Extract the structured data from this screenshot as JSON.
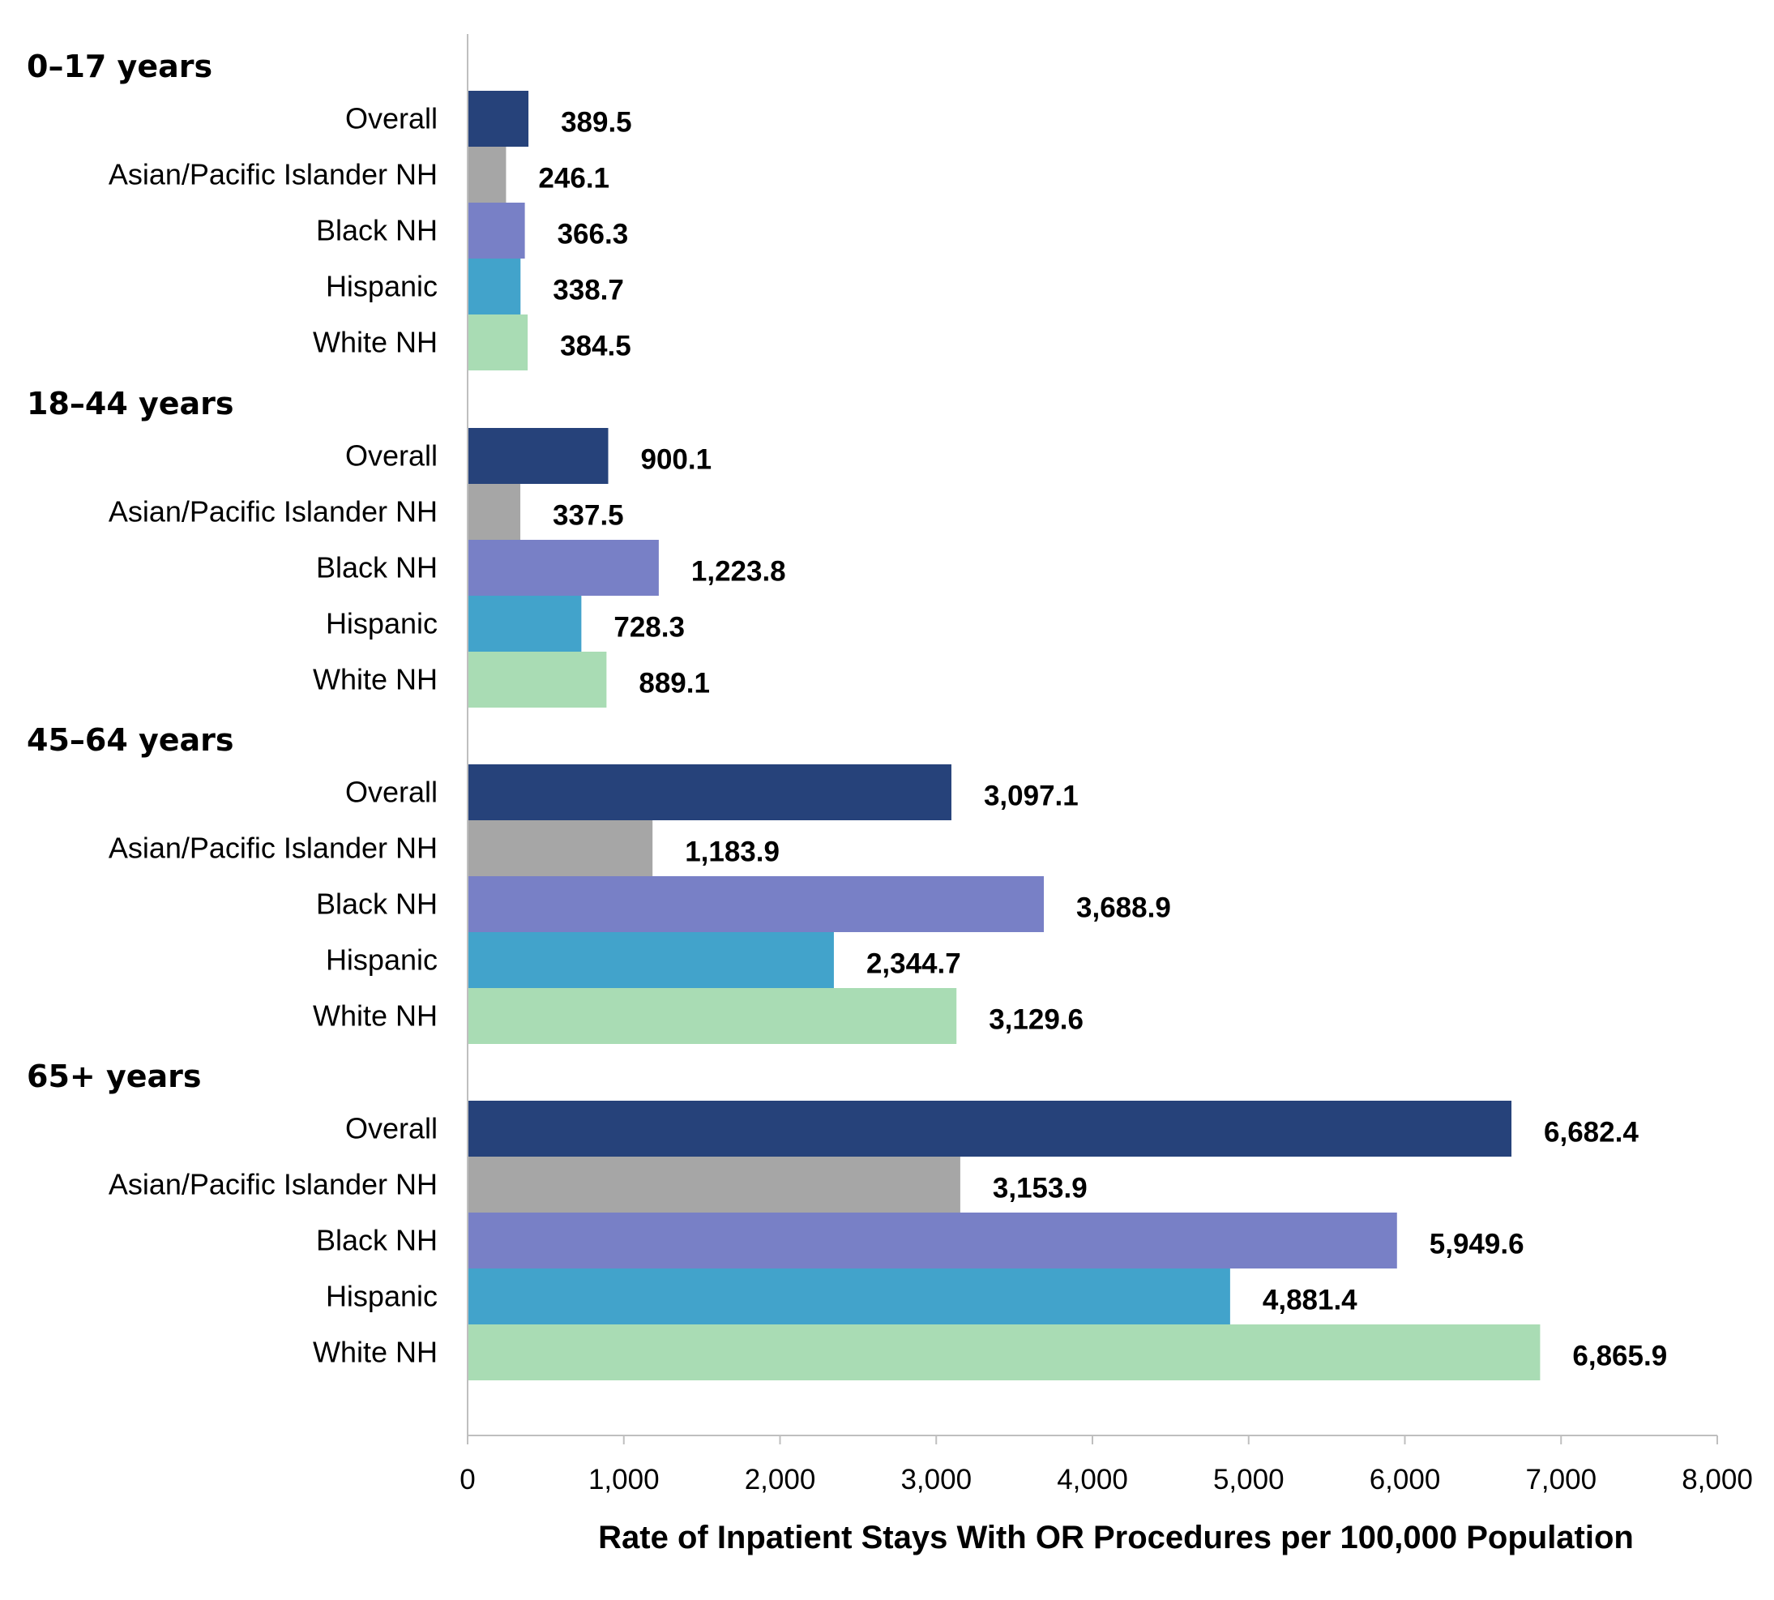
{
  "chart_data": {
    "type": "bar",
    "orientation": "horizontal",
    "xlabel": "Rate of Inpatient Stays With OR Procedures per 100,000 Population",
    "xlim": [
      0,
      8000
    ],
    "xticks": [
      "0",
      "1,000",
      "2,000",
      "3,000",
      "4,000",
      "5,000",
      "6,000",
      "7,000",
      "8,000"
    ],
    "grid": false,
    "categories": [
      "Overall",
      "Asian/Pacific Islander NH",
      "Black NH",
      "Hispanic",
      "White NH"
    ],
    "colors": [
      "#26427a",
      "#a6a6a6",
      "#7880c6",
      "#42a3cb",
      "#a9dcb4"
    ],
    "groups": [
      {
        "label": "0–17 years",
        "values": [
          389.5,
          246.1,
          366.3,
          338.7,
          384.5
        ],
        "labels": [
          "389.5",
          "246.1",
          "366.3",
          "338.7",
          "384.5"
        ]
      },
      {
        "label": "18–44 years",
        "values": [
          900.1,
          337.5,
          1223.8,
          728.3,
          889.1
        ],
        "labels": [
          "900.1",
          "337.5",
          "1,223.8",
          "728.3",
          "889.1"
        ]
      },
      {
        "label": "45–64 years",
        "values": [
          3097.1,
          1183.9,
          3688.9,
          2344.7,
          3129.6
        ],
        "labels": [
          "3,097.1",
          "1,183.9",
          "3,688.9",
          "2,344.7",
          "3,129.6"
        ]
      },
      {
        "label": "65+ years",
        "values": [
          6682.4,
          3153.9,
          5949.6,
          4881.4,
          6865.9
        ],
        "labels": [
          "6,682.4",
          "3,153.9",
          "5,949.6",
          "4,881.4",
          "6,865.9"
        ]
      }
    ]
  }
}
